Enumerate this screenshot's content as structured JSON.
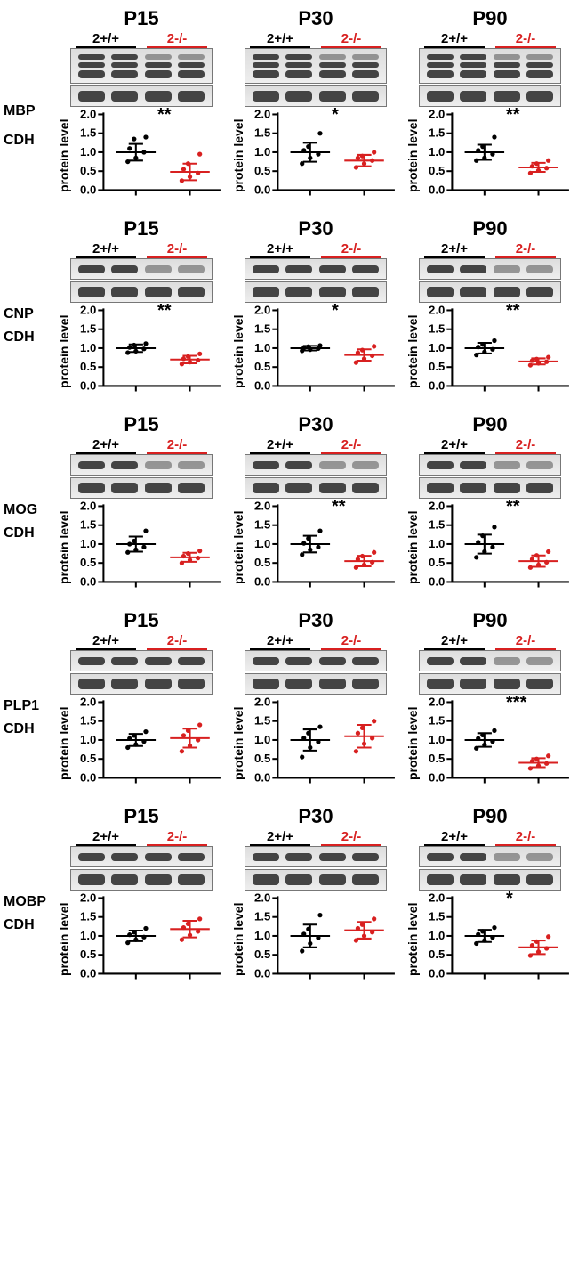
{
  "colors": {
    "wt": "#000000",
    "ko": "#d82020",
    "axis": "#000000",
    "bg": "#ffffff"
  },
  "ylabel": "protein level",
  "genotypes": {
    "wt": "2+/+",
    "ko": "2-/-"
  },
  "timepoints": [
    "P15",
    "P30",
    "P90"
  ],
  "yaxis": {
    "min": 0.0,
    "max": 2.0,
    "ticks": [
      0.0,
      0.5,
      1.0,
      1.5,
      2.0
    ]
  },
  "rows": [
    {
      "protein": "MBP",
      "loading": "CDH",
      "blot_rows": 2,
      "blot_h": 40,
      "panels": [
        {
          "sig": "**",
          "wt": {
            "mean": 1.0,
            "sd": 0.22,
            "pts": [
              0.75,
              0.85,
              1.0,
              1.1,
              1.35,
              1.4
            ]
          },
          "ko": {
            "mean": 0.48,
            "sd": 0.22,
            "pts": [
              0.25,
              0.35,
              0.45,
              0.55,
              0.7,
              0.95
            ]
          }
        },
        {
          "sig": "*",
          "wt": {
            "mean": 1.0,
            "sd": 0.25,
            "pts": [
              0.7,
              0.85,
              0.95,
              1.05,
              1.15,
              1.5
            ]
          },
          "ko": {
            "mean": 0.78,
            "sd": 0.15,
            "pts": [
              0.6,
              0.7,
              0.78,
              0.85,
              0.9,
              1.0
            ]
          }
        },
        {
          "sig": "**",
          "wt": {
            "mean": 1.0,
            "sd": 0.2,
            "pts": [
              0.78,
              0.85,
              0.95,
              1.05,
              1.15,
              1.4
            ]
          },
          "ko": {
            "mean": 0.6,
            "sd": 0.12,
            "pts": [
              0.45,
              0.52,
              0.58,
              0.63,
              0.7,
              0.78
            ]
          }
        }
      ]
    },
    {
      "protein": "CNP",
      "loading": "CDH",
      "blot_rows": 1,
      "blot_h": 24,
      "panels": [
        {
          "sig": "**",
          "wt": {
            "mean": 1.0,
            "sd": 0.1,
            "pts": [
              0.88,
              0.92,
              0.98,
              1.02,
              1.08,
              1.12
            ]
          },
          "ko": {
            "mean": 0.7,
            "sd": 0.1,
            "pts": [
              0.58,
              0.63,
              0.68,
              0.72,
              0.78,
              0.85
            ]
          }
        },
        {
          "sig": "*",
          "wt": {
            "mean": 1.0,
            "sd": 0.06,
            "pts": [
              0.93,
              0.96,
              0.99,
              1.01,
              1.04,
              1.07
            ]
          },
          "ko": {
            "mean": 0.82,
            "sd": 0.15,
            "pts": [
              0.62,
              0.72,
              0.8,
              0.88,
              0.95,
              1.05
            ]
          }
        },
        {
          "sig": "**",
          "wt": {
            "mean": 1.0,
            "sd": 0.14,
            "pts": [
              0.82,
              0.9,
              0.97,
              1.03,
              1.1,
              1.2
            ]
          },
          "ko": {
            "mean": 0.65,
            "sd": 0.08,
            "pts": [
              0.55,
              0.6,
              0.64,
              0.67,
              0.71,
              0.76
            ]
          }
        }
      ]
    },
    {
      "protein": "MOG",
      "loading": "CDH",
      "blot_rows": 1,
      "blot_h": 24,
      "panels": [
        {
          "sig": "",
          "wt": {
            "mean": 1.0,
            "sd": 0.2,
            "pts": [
              0.78,
              0.85,
              0.92,
              1.0,
              1.08,
              1.35
            ]
          },
          "ko": {
            "mean": 0.65,
            "sd": 0.12,
            "pts": [
              0.5,
              0.58,
              0.63,
              0.68,
              0.75,
              0.82
            ]
          }
        },
        {
          "sig": "**",
          "wt": {
            "mean": 1.0,
            "sd": 0.22,
            "pts": [
              0.72,
              0.85,
              0.92,
              1.02,
              1.15,
              1.35
            ]
          },
          "ko": {
            "mean": 0.55,
            "sd": 0.14,
            "pts": [
              0.38,
              0.45,
              0.52,
              0.6,
              0.68,
              0.78
            ]
          }
        },
        {
          "sig": "**",
          "wt": {
            "mean": 1.0,
            "sd": 0.25,
            "pts": [
              0.65,
              0.8,
              0.92,
              1.05,
              1.22,
              1.45
            ]
          },
          "ko": {
            "mean": 0.55,
            "sd": 0.15,
            "pts": [
              0.38,
              0.45,
              0.52,
              0.6,
              0.7,
              0.8
            ]
          }
        }
      ]
    },
    {
      "protein": "PLP1",
      "loading": "CDH",
      "blot_rows": 1,
      "blot_h": 24,
      "panels": [
        {
          "sig": "",
          "wt": {
            "mean": 1.0,
            "sd": 0.16,
            "pts": [
              0.8,
              0.88,
              0.96,
              1.04,
              1.12,
              1.22
            ]
          },
          "ko": {
            "mean": 1.05,
            "sd": 0.25,
            "pts": [
              0.7,
              0.85,
              1.0,
              1.12,
              1.25,
              1.4
            ]
          }
        },
        {
          "sig": "",
          "wt": {
            "mean": 1.0,
            "sd": 0.28,
            "pts": [
              0.55,
              0.8,
              0.95,
              1.05,
              1.18,
              1.35
            ]
          },
          "ko": {
            "mean": 1.1,
            "sd": 0.3,
            "pts": [
              0.7,
              0.9,
              1.05,
              1.18,
              1.32,
              1.5
            ]
          }
        },
        {
          "sig": "***",
          "wt": {
            "mean": 1.0,
            "sd": 0.18,
            "pts": [
              0.78,
              0.87,
              0.96,
              1.04,
              1.13,
              1.25
            ]
          },
          "ko": {
            "mean": 0.4,
            "sd": 0.12,
            "pts": [
              0.25,
              0.32,
              0.38,
              0.44,
              0.5,
              0.58
            ]
          }
        }
      ]
    },
    {
      "protein": "MOBP",
      "loading": "CDH",
      "blot_rows": 1,
      "blot_h": 24,
      "panels": [
        {
          "sig": "",
          "wt": {
            "mean": 1.0,
            "sd": 0.14,
            "pts": [
              0.82,
              0.9,
              0.97,
              1.03,
              1.1,
              1.2
            ]
          },
          "ko": {
            "mean": 1.18,
            "sd": 0.22,
            "pts": [
              0.9,
              1.02,
              1.12,
              1.22,
              1.32,
              1.45
            ]
          }
        },
        {
          "sig": "",
          "wt": {
            "mean": 1.0,
            "sd": 0.3,
            "pts": [
              0.6,
              0.8,
              0.95,
              1.05,
              1.18,
              1.55
            ]
          },
          "ko": {
            "mean": 1.15,
            "sd": 0.22,
            "pts": [
              0.88,
              1.0,
              1.1,
              1.2,
              1.3,
              1.45
            ]
          }
        },
        {
          "sig": "*",
          "wt": {
            "mean": 1.0,
            "sd": 0.16,
            "pts": [
              0.8,
              0.88,
              0.96,
              1.04,
              1.12,
              1.22
            ]
          },
          "ko": {
            "mean": 0.7,
            "sd": 0.18,
            "pts": [
              0.48,
              0.58,
              0.67,
              0.75,
              0.85,
              0.98
            ]
          }
        }
      ]
    }
  ]
}
